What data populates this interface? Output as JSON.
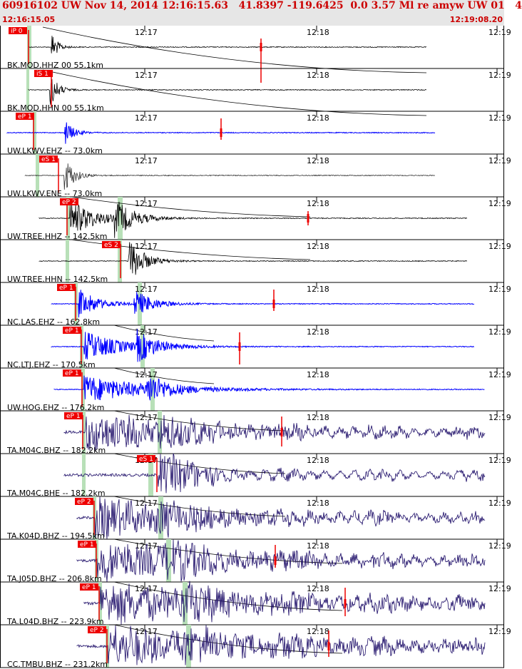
{
  "header": {
    "title": "60916102 UW Nov 14, 2014 12:16:15.63   41.8397 -119.6425  0.0 3.57 Ml re amyw UW 01   4",
    "start_time": "12:16:15.05",
    "end_time": "12:19:08.20"
  },
  "colors": {
    "header_text": "#cc0000",
    "pick_box": "#ee0000",
    "predicted_band": "#b8e0b8",
    "trace_black": "#000000",
    "trace_blue": "#0000ff",
    "trace_navy": "#1a0a66"
  },
  "chart_data": {
    "type": "line",
    "x_unit": "time",
    "time_ticks": [
      "12:17",
      "12:18",
      "12:19"
    ],
    "traces": [
      {
        "label": "BK.MOD.HHZ 00 55.1km",
        "pick": "iP 0",
        "color": "black"
      },
      {
        "label": "BK.MOD.HHN 00 55.1km",
        "pick": "iS 1",
        "color": "black"
      },
      {
        "label": "UW.LKWV.EHZ -- 73.0km",
        "pick": "eP 1",
        "color": "blue"
      },
      {
        "label": "UW.LKWV.ENE -- 73.0km",
        "pick": "eS 1",
        "color": "gray"
      },
      {
        "label": "UW.TREE.HHZ -- 142.5km",
        "pick": "eP 2",
        "color": "black"
      },
      {
        "label": "UW.TREE.HHN -- 142.5km",
        "pick": "eS 2",
        "color": "black"
      },
      {
        "label": "NC.LAS.EHZ -- 162.8km",
        "pick": "eP 1",
        "color": "blue"
      },
      {
        "label": "NC.LTJ.EHZ -- 170.5km",
        "pick": "eP 1",
        "color": "blue"
      },
      {
        "label": "UW.HOG.EHZ -- 176.2km",
        "pick": "eP 1",
        "color": "blue"
      },
      {
        "label": "TA.M04C.BHZ -- 182.2km",
        "pick": "eP 1",
        "color": "navy"
      },
      {
        "label": "TA.M04C.BHE -- 182.2km",
        "pick": "eS 1",
        "color": "navy"
      },
      {
        "label": "TA.K04D.BHZ -- 194.5km",
        "pick": "eP 2",
        "color": "navy"
      },
      {
        "label": "TA.J05D.BHZ -- 206.8km",
        "pick": "eP 1",
        "color": "navy"
      },
      {
        "label": "TA.L04D.BHZ -- 223.9km",
        "pick": "eP 1",
        "color": "navy"
      },
      {
        "label": "CC.TMBU.BHZ -- 231.2km",
        "pick": "eP 2",
        "color": "navy"
      }
    ]
  }
}
